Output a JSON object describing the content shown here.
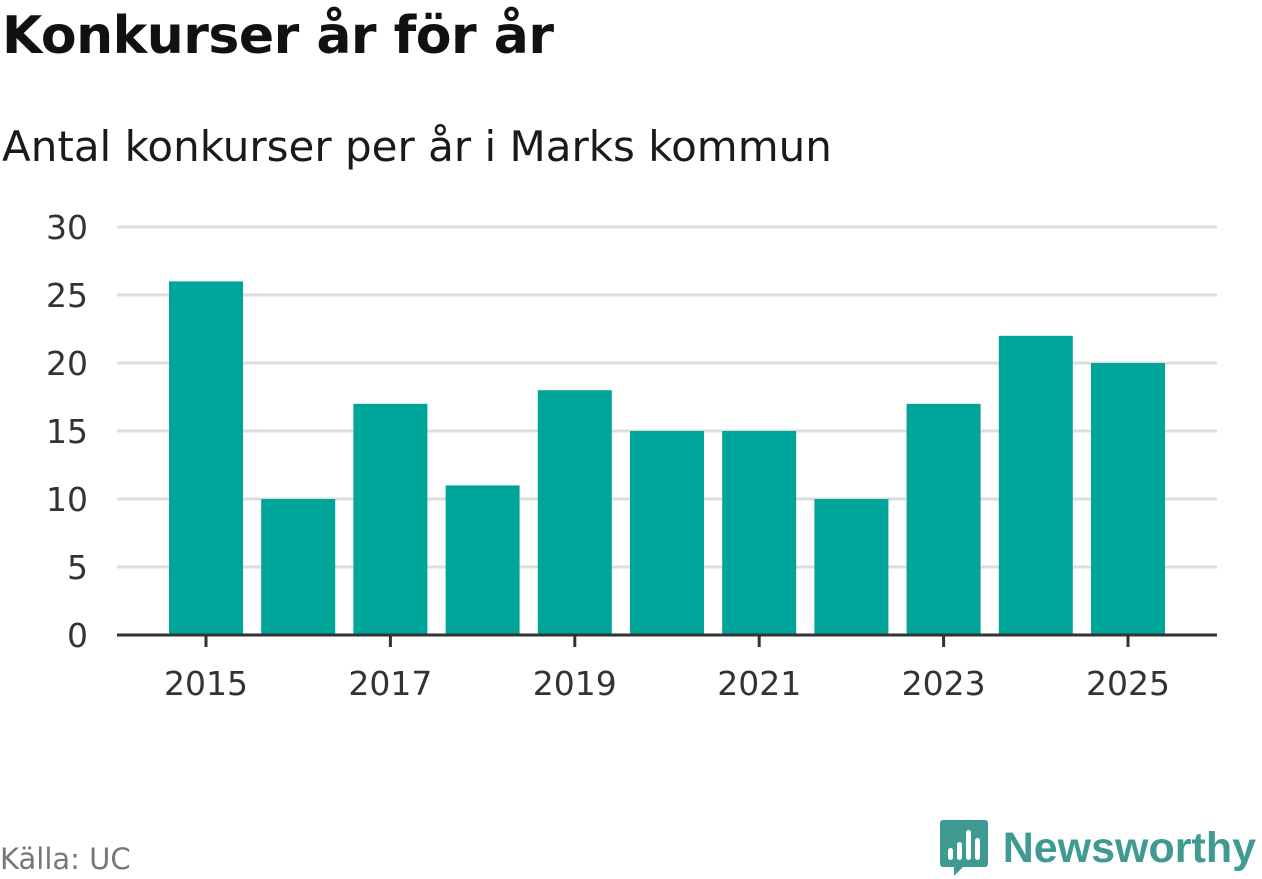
{
  "header": {
    "title": "Konkurser år för år",
    "subtitle": "Antal konkurser per år i Marks kommun"
  },
  "footer": {
    "source": "Källa: UC",
    "brand": "Newsworthy",
    "brand_icon": "bar-chart-speech-bubble-icon"
  },
  "colors": {
    "bar": "#00a59a",
    "grid": "#dddddd",
    "axis": "#333333",
    "brand": "#3f9a93"
  },
  "chart_data": {
    "type": "bar",
    "categories": [
      "2015",
      "2016",
      "2017",
      "2018",
      "2019",
      "2020",
      "2021",
      "2022",
      "2023",
      "2024",
      "2025"
    ],
    "values": [
      26,
      10,
      17,
      11,
      18,
      15,
      15,
      10,
      17,
      22,
      20
    ],
    "x_tick_labels": [
      "2015",
      "2017",
      "2019",
      "2021",
      "2023",
      "2025"
    ],
    "y_ticks": [
      0,
      5,
      10,
      15,
      20,
      25,
      30
    ],
    "ylim": [
      0,
      30
    ],
    "xlabel": "",
    "ylabel": "",
    "grid": true,
    "legend": "none"
  }
}
